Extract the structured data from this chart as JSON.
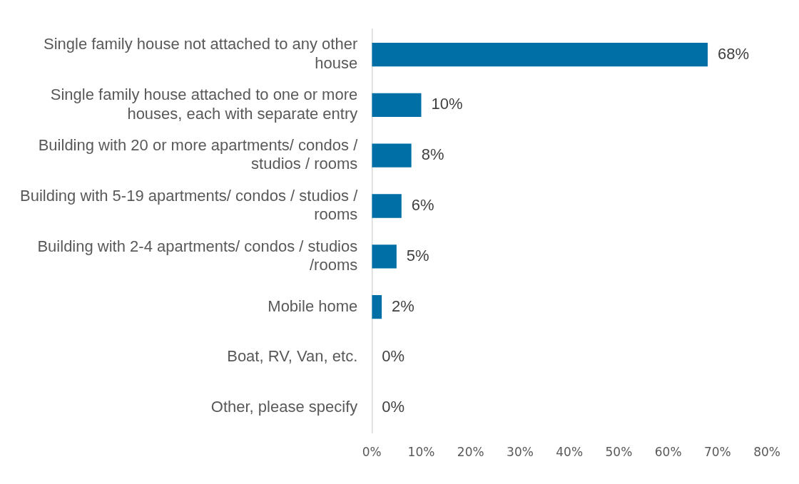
{
  "chart_data": {
    "type": "bar",
    "orientation": "horizontal",
    "categories": [
      "Single family house not attached to any other house",
      "Single family house attached to one or more houses, each with separate entry",
      "Building with 20 or more apartments/ condos / studios / rooms",
      "Building with 5-19 apartments/ condos / studios / rooms",
      "Building with 2-4 apartments/ condos / studios /rooms",
      "Mobile home",
      "Boat, RV, Van, etc.",
      "Other, please specify"
    ],
    "values": [
      68,
      10,
      8,
      6,
      5,
      2,
      0,
      0
    ],
    "value_labels": [
      "68%",
      "10%",
      "8%",
      "6%",
      "5%",
      "2%",
      "0%",
      "0%"
    ],
    "color": "#006fa6",
    "xlim": [
      0,
      80
    ],
    "xticks": [
      {
        "value": 0,
        "label": "0%"
      },
      {
        "value": 10,
        "label": "10%"
      },
      {
        "value": 20,
        "label": "20%"
      },
      {
        "value": 30,
        "label": "30%"
      },
      {
        "value": 40,
        "label": "40%"
      },
      {
        "value": 50,
        "label": "50%"
      },
      {
        "value": 60,
        "label": "60%"
      },
      {
        "value": 70,
        "label": "70%"
      },
      {
        "value": 80,
        "label": "80%"
      }
    ],
    "grid": false,
    "legend": false
  }
}
